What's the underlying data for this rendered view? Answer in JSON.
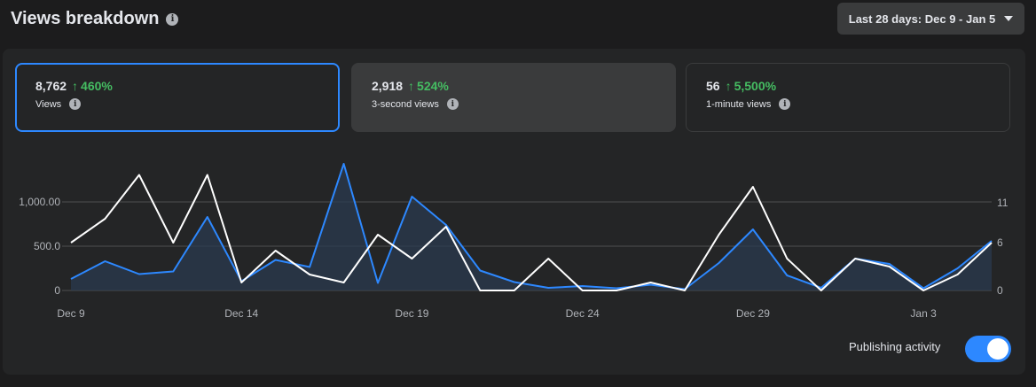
{
  "header": {
    "title": "Views breakdown",
    "info_icon": "info-icon",
    "date_range": "Last 28 days: Dec 9 - Jan 5",
    "dropdown_icon": "caret-down-icon"
  },
  "cards": [
    {
      "value": "8,762",
      "change": "460%",
      "arrow": "↑",
      "label": "Views",
      "selected": true
    },
    {
      "value": "2,918",
      "change": "524%",
      "arrow": "↑",
      "label": "3-second views",
      "selected": false
    },
    {
      "value": "56",
      "change": "5,500%",
      "arrow": "↑",
      "label": "1-minute views",
      "selected": false
    }
  ],
  "colors": {
    "accent": "#2d88ff",
    "positive": "#45bd62",
    "white_series": "#ffffff",
    "area_fill": "#2a3a4f"
  },
  "publishing_activity": {
    "label": "Publishing activity",
    "on": true
  },
  "chart_data": {
    "type": "line",
    "x": [
      "Dec 9",
      "Dec 10",
      "Dec 11",
      "Dec 12",
      "Dec 13",
      "Dec 14",
      "Dec 15",
      "Dec 16",
      "Dec 17",
      "Dec 18",
      "Dec 19",
      "Dec 20",
      "Dec 21",
      "Dec 22",
      "Dec 23",
      "Dec 24",
      "Dec 25",
      "Dec 26",
      "Dec 27",
      "Dec 28",
      "Dec 29",
      "Dec 30",
      "Dec 31",
      "Jan 1",
      "Jan 2",
      "Jan 3",
      "Jan 4",
      "Jan 5"
    ],
    "xticks": [
      "Dec 9",
      "Dec 14",
      "Dec 19",
      "Dec 24",
      "Dec 29",
      "Jan 3"
    ],
    "yticks_left": [
      "0",
      "500.0",
      "1,000.00"
    ],
    "yticks_right": [
      "0",
      "6",
      "11"
    ],
    "ylim_left": [
      0,
      1350
    ],
    "ylim_right": [
      0,
      15
    ],
    "grid": true,
    "series": [
      {
        "axis": "left",
        "fill": true,
        "values": [
          130,
          330,
          185,
          215,
          830,
          105,
          345,
          265,
          1430,
          85,
          1060,
          740,
          225,
          95,
          30,
          50,
          25,
          65,
          15,
          310,
          690,
          170,
          30,
          360,
          300,
          25,
          250,
          560
        ]
      },
      {
        "axis": "right",
        "values": [
          6,
          9,
          14.5,
          6,
          14.5,
          1,
          5,
          2,
          1,
          7,
          4,
          8,
          0,
          0,
          4,
          0,
          0,
          1,
          0,
          7,
          13,
          4,
          0,
          4,
          3,
          0,
          2,
          6
        ]
      }
    ]
  }
}
